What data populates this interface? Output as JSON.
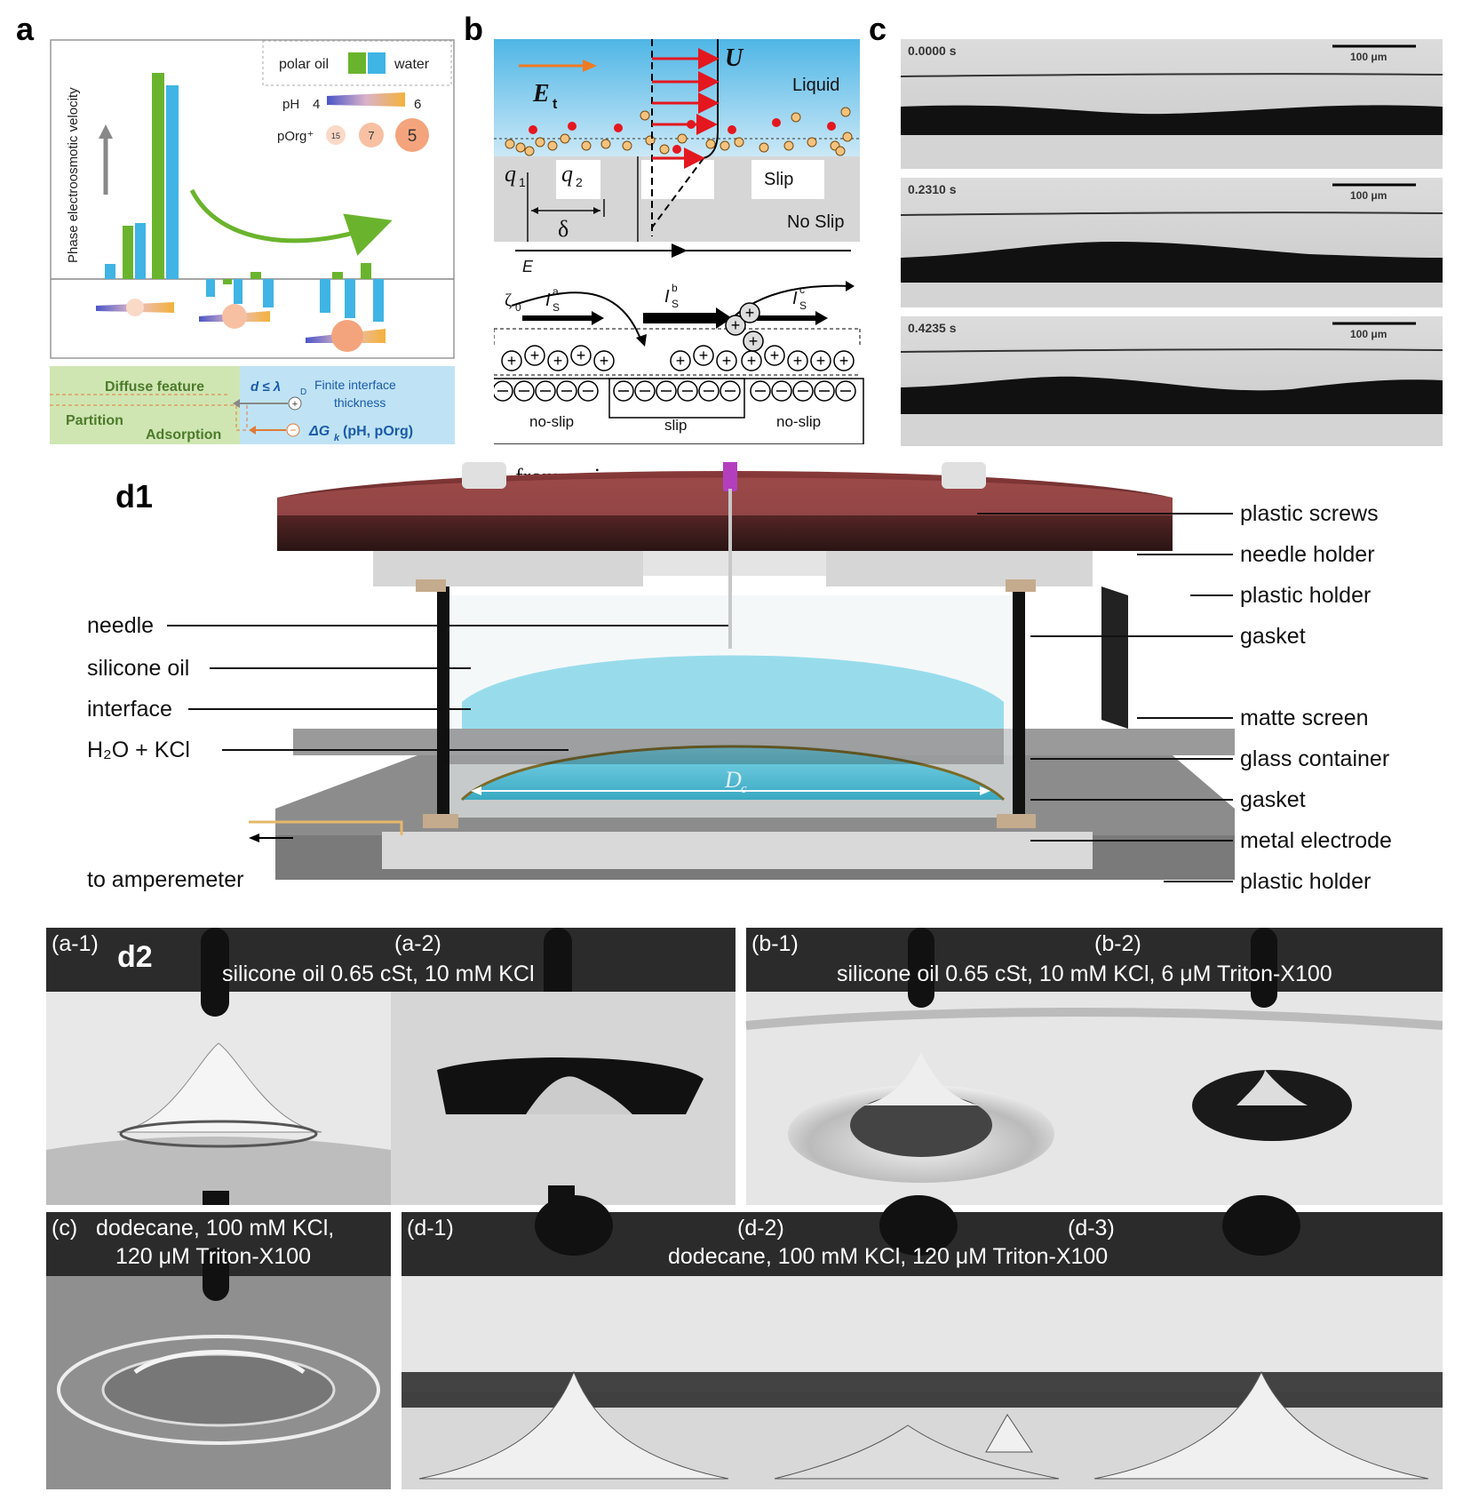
{
  "panels": {
    "a": {
      "label": "a",
      "ylabel": "Phase electroosmotic velocity",
      "legend_oil": "polar oil",
      "legend_water": "water",
      "ph_label": "pH",
      "ph_min": "4",
      "ph_max": "6",
      "porg_label": "pOrg⁺",
      "porg_values": [
        "15",
        "7",
        "5"
      ],
      "diffuse_feature": "Diffuse feature",
      "d_lambda": "d ≤ λ",
      "d_lambda_sub": "D",
      "finite_interface_1": "Finite interface",
      "finite_interface_2": "thickness",
      "partition": "Partition",
      "adsorption": "Adsorption",
      "delta_g": "ΔG",
      "delta_g_sub": "k",
      "delta_g_args": "(pH, pOrg)",
      "colors": {
        "oil": "#6ab42d",
        "water": "#3fb4e5",
        "green_bg": "#cfe6b3",
        "blue_bg": "#bfe3f5"
      }
    },
    "b": {
      "label": "b",
      "Et": "E",
      "Et_sub": "t",
      "U": "U",
      "liquid": "Liquid",
      "q1": "q",
      "q1_sub": "1",
      "q2": "q",
      "q2_sub": "2",
      "slip": "Slip",
      "no_slip": "No Slip",
      "delta": "δ",
      "E": "E",
      "zeta": "ζ",
      "zeta_sub": "0",
      "Is": "I",
      "Is_sub": "S",
      "sup_a": "a",
      "sup_b": "b",
      "sup_c": "c",
      "bottom_noslip_left": "no-slip",
      "bottom_slip": "slip",
      "bottom_noslip_right": "no-slip"
    },
    "c": {
      "label": "c",
      "frames": [
        {
          "time": "0.0000 s",
          "scale": "100 μm"
        },
        {
          "time": "0.2310 s",
          "scale": "100 μm"
        },
        {
          "time": "0.4235 s",
          "scale": "100 μm"
        }
      ]
    },
    "d1": {
      "label": "d1",
      "top_label": "from syringe pump + power source",
      "dc_label": "D",
      "dc_sub": "c",
      "left_labels": [
        "needle",
        "silicone oil",
        "interface",
        "H₂O + KCl",
        "to amperemeter"
      ],
      "right_labels": [
        "plastic screws",
        "needle holder",
        "plastic holder",
        "gasket",
        "matte screen",
        "glass container",
        "gasket",
        "metal electrode",
        "plastic holder"
      ]
    },
    "d2": {
      "label": "d2",
      "a1": "(a-1)",
      "a2": "(a-2)",
      "a_caption": "silicone oil 0.65 cSt, 10 mM KCl",
      "b1": "(b-1)",
      "b2": "(b-2)",
      "b_caption": "silicone oil 0.65 cSt, 10 mM KCl, 6 μM Triton-X100",
      "c": "(c)",
      "c_caption_1": "dodecane, 100 mM KCl,",
      "c_caption_2": "120 μM Triton-X100",
      "d1": "(d-1)",
      "d2": "(d-2)",
      "d3": "(d-3)",
      "d_caption": "dodecane, 100 mM KCl, 120 μM Triton-X100"
    }
  }
}
